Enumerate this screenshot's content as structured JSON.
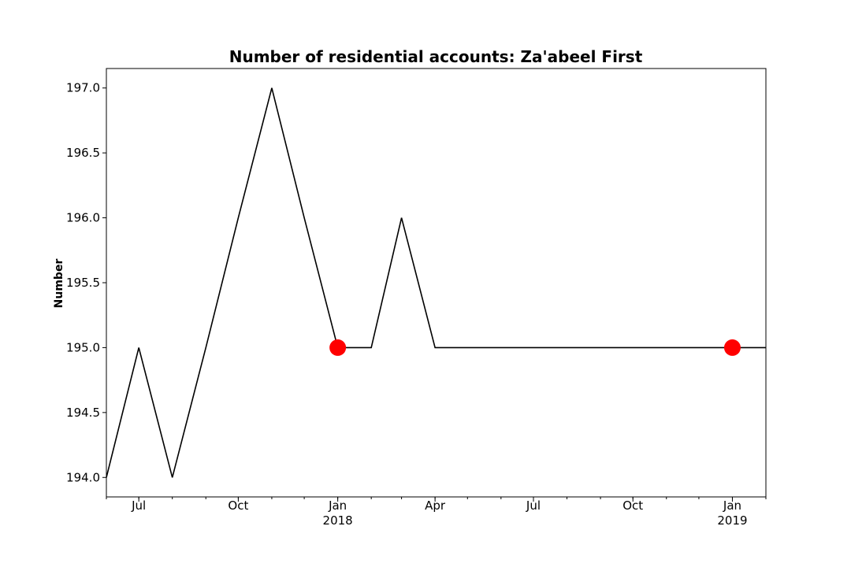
{
  "chart_data": {
    "type": "line",
    "title": "Number of residential accounts: Za'abeel First",
    "xlabel": "",
    "ylabel": "Number",
    "x_range": [
      "2017-06-01",
      "2019-02-01"
    ],
    "ylim": [
      193.85,
      197.15
    ],
    "y_ticks": [
      194.0,
      194.5,
      195.0,
      195.5,
      196.0,
      196.5,
      197.0
    ],
    "x_ticks": [
      {
        "date": "2017-07-01",
        "label": "Jul",
        "sublabel": ""
      },
      {
        "date": "2017-10-01",
        "label": "Oct",
        "sublabel": ""
      },
      {
        "date": "2018-01-01",
        "label": "Jan",
        "sublabel": "2018"
      },
      {
        "date": "2018-04-01",
        "label": "Apr",
        "sublabel": ""
      },
      {
        "date": "2018-07-01",
        "label": "Jul",
        "sublabel": ""
      },
      {
        "date": "2018-10-01",
        "label": "Oct",
        "sublabel": ""
      },
      {
        "date": "2019-01-01",
        "label": "Jan",
        "sublabel": "2019"
      }
    ],
    "grid": false,
    "series": [
      {
        "color": "#000000",
        "x": [
          "2017-06-01",
          "2017-07-01",
          "2017-08-01",
          "2017-09-01",
          "2017-10-01",
          "2017-11-01",
          "2017-12-01",
          "2018-01-01",
          "2018-02-01",
          "2018-03-01",
          "2018-04-01",
          "2018-05-01",
          "2018-06-01",
          "2018-07-01",
          "2018-08-01",
          "2018-09-01",
          "2018-10-01",
          "2018-11-01",
          "2018-12-01",
          "2019-01-01",
          "2019-02-01"
        ],
        "values": [
          194,
          195,
          194,
          195,
          196,
          197,
          196,
          195,
          195,
          196,
          195,
          195,
          195,
          195,
          195,
          195,
          195,
          195,
          195,
          195,
          195
        ]
      }
    ],
    "markers": {
      "color": "#ff0000",
      "points": [
        {
          "x": "2018-01-01",
          "y": 195
        },
        {
          "x": "2019-01-01",
          "y": 195
        }
      ]
    }
  }
}
